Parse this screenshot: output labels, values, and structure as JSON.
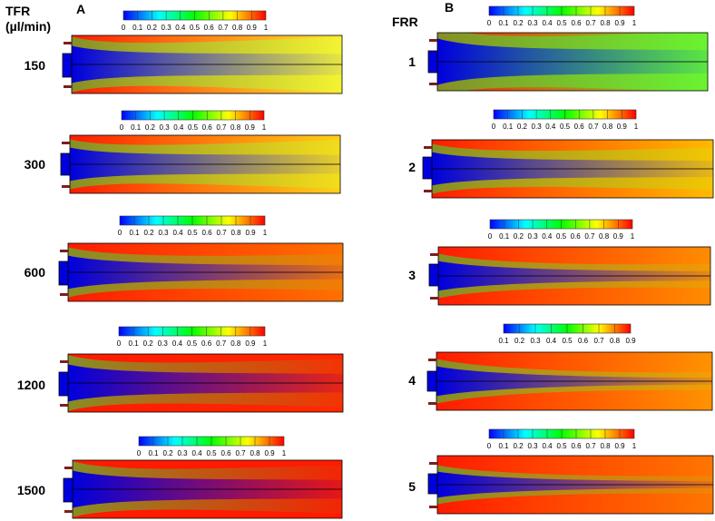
{
  "panel_a": {
    "letter": "A",
    "axis_title_line1": "TFR",
    "axis_title_line2": "(µl/min)",
    "rows": [
      {
        "label": "150"
      },
      {
        "label": "300"
      },
      {
        "label": "600"
      },
      {
        "label": "1200"
      },
      {
        "label": "1500"
      }
    ]
  },
  "panel_b": {
    "letter": "B",
    "axis_title": "FRR",
    "rows": [
      {
        "label": "1"
      },
      {
        "label": "2"
      },
      {
        "label": "3"
      },
      {
        "label": "4"
      },
      {
        "label": "5"
      }
    ]
  },
  "colorbar": {
    "ticks": [
      "0",
      "0.1",
      "0.2",
      "0.3",
      "0.4",
      "0.5",
      "0.6",
      "0.7",
      "0.8",
      "0.9",
      "1"
    ],
    "ticks_partial": [
      "0.1",
      "0.2",
      "0.3",
      "0.4",
      "0.5",
      "0.6",
      "0.7",
      "0.8",
      "0.9"
    ],
    "colors": [
      "#0000ff",
      "#00ffff",
      "#00ff00",
      "#ffff00",
      "#ff0000"
    ]
  }
}
